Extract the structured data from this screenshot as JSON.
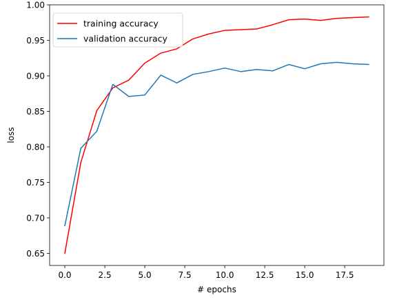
{
  "chart_data": {
    "type": "line",
    "xlabel": "# epochs",
    "ylabel": "loss",
    "xlim": [
      -0.95,
      19.95
    ],
    "ylim": [
      0.633,
      1.0
    ],
    "xticks": [
      0.0,
      2.5,
      5.0,
      7.5,
      10.0,
      12.5,
      15.0,
      17.5
    ],
    "xtick_labels": [
      "0.0",
      "2.5",
      "5.0",
      "7.5",
      "10.0",
      "12.5",
      "15.0",
      "17.5"
    ],
    "yticks": [
      0.65,
      0.7,
      0.75,
      0.8,
      0.85,
      0.9,
      0.95,
      1.0
    ],
    "ytick_labels": [
      "0.65",
      "0.70",
      "0.75",
      "0.80",
      "0.85",
      "0.90",
      "0.95",
      "1.00"
    ],
    "grid": false,
    "legend_position": "top-left",
    "x": [
      0,
      1,
      2,
      3,
      4,
      5,
      6,
      7,
      8,
      9,
      10,
      11,
      12,
      13,
      14,
      15,
      16,
      17,
      18,
      19
    ],
    "series": [
      {
        "name": "training accuracy",
        "color": "#ff0000",
        "values": [
          0.65,
          0.778,
          0.851,
          0.883,
          0.894,
          0.918,
          0.932,
          0.938,
          0.952,
          0.959,
          0.964,
          0.965,
          0.966,
          0.972,
          0.979,
          0.98,
          0.978,
          0.981,
          0.982,
          0.983
        ]
      },
      {
        "name": "validation accuracy",
        "color": "#1f77b4",
        "values": [
          0.689,
          0.798,
          0.822,
          0.888,
          0.871,
          0.873,
          0.901,
          0.89,
          0.902,
          0.906,
          0.911,
          0.906,
          0.909,
          0.907,
          0.916,
          0.91,
          0.917,
          0.919,
          0.917,
          0.916
        ]
      }
    ]
  }
}
